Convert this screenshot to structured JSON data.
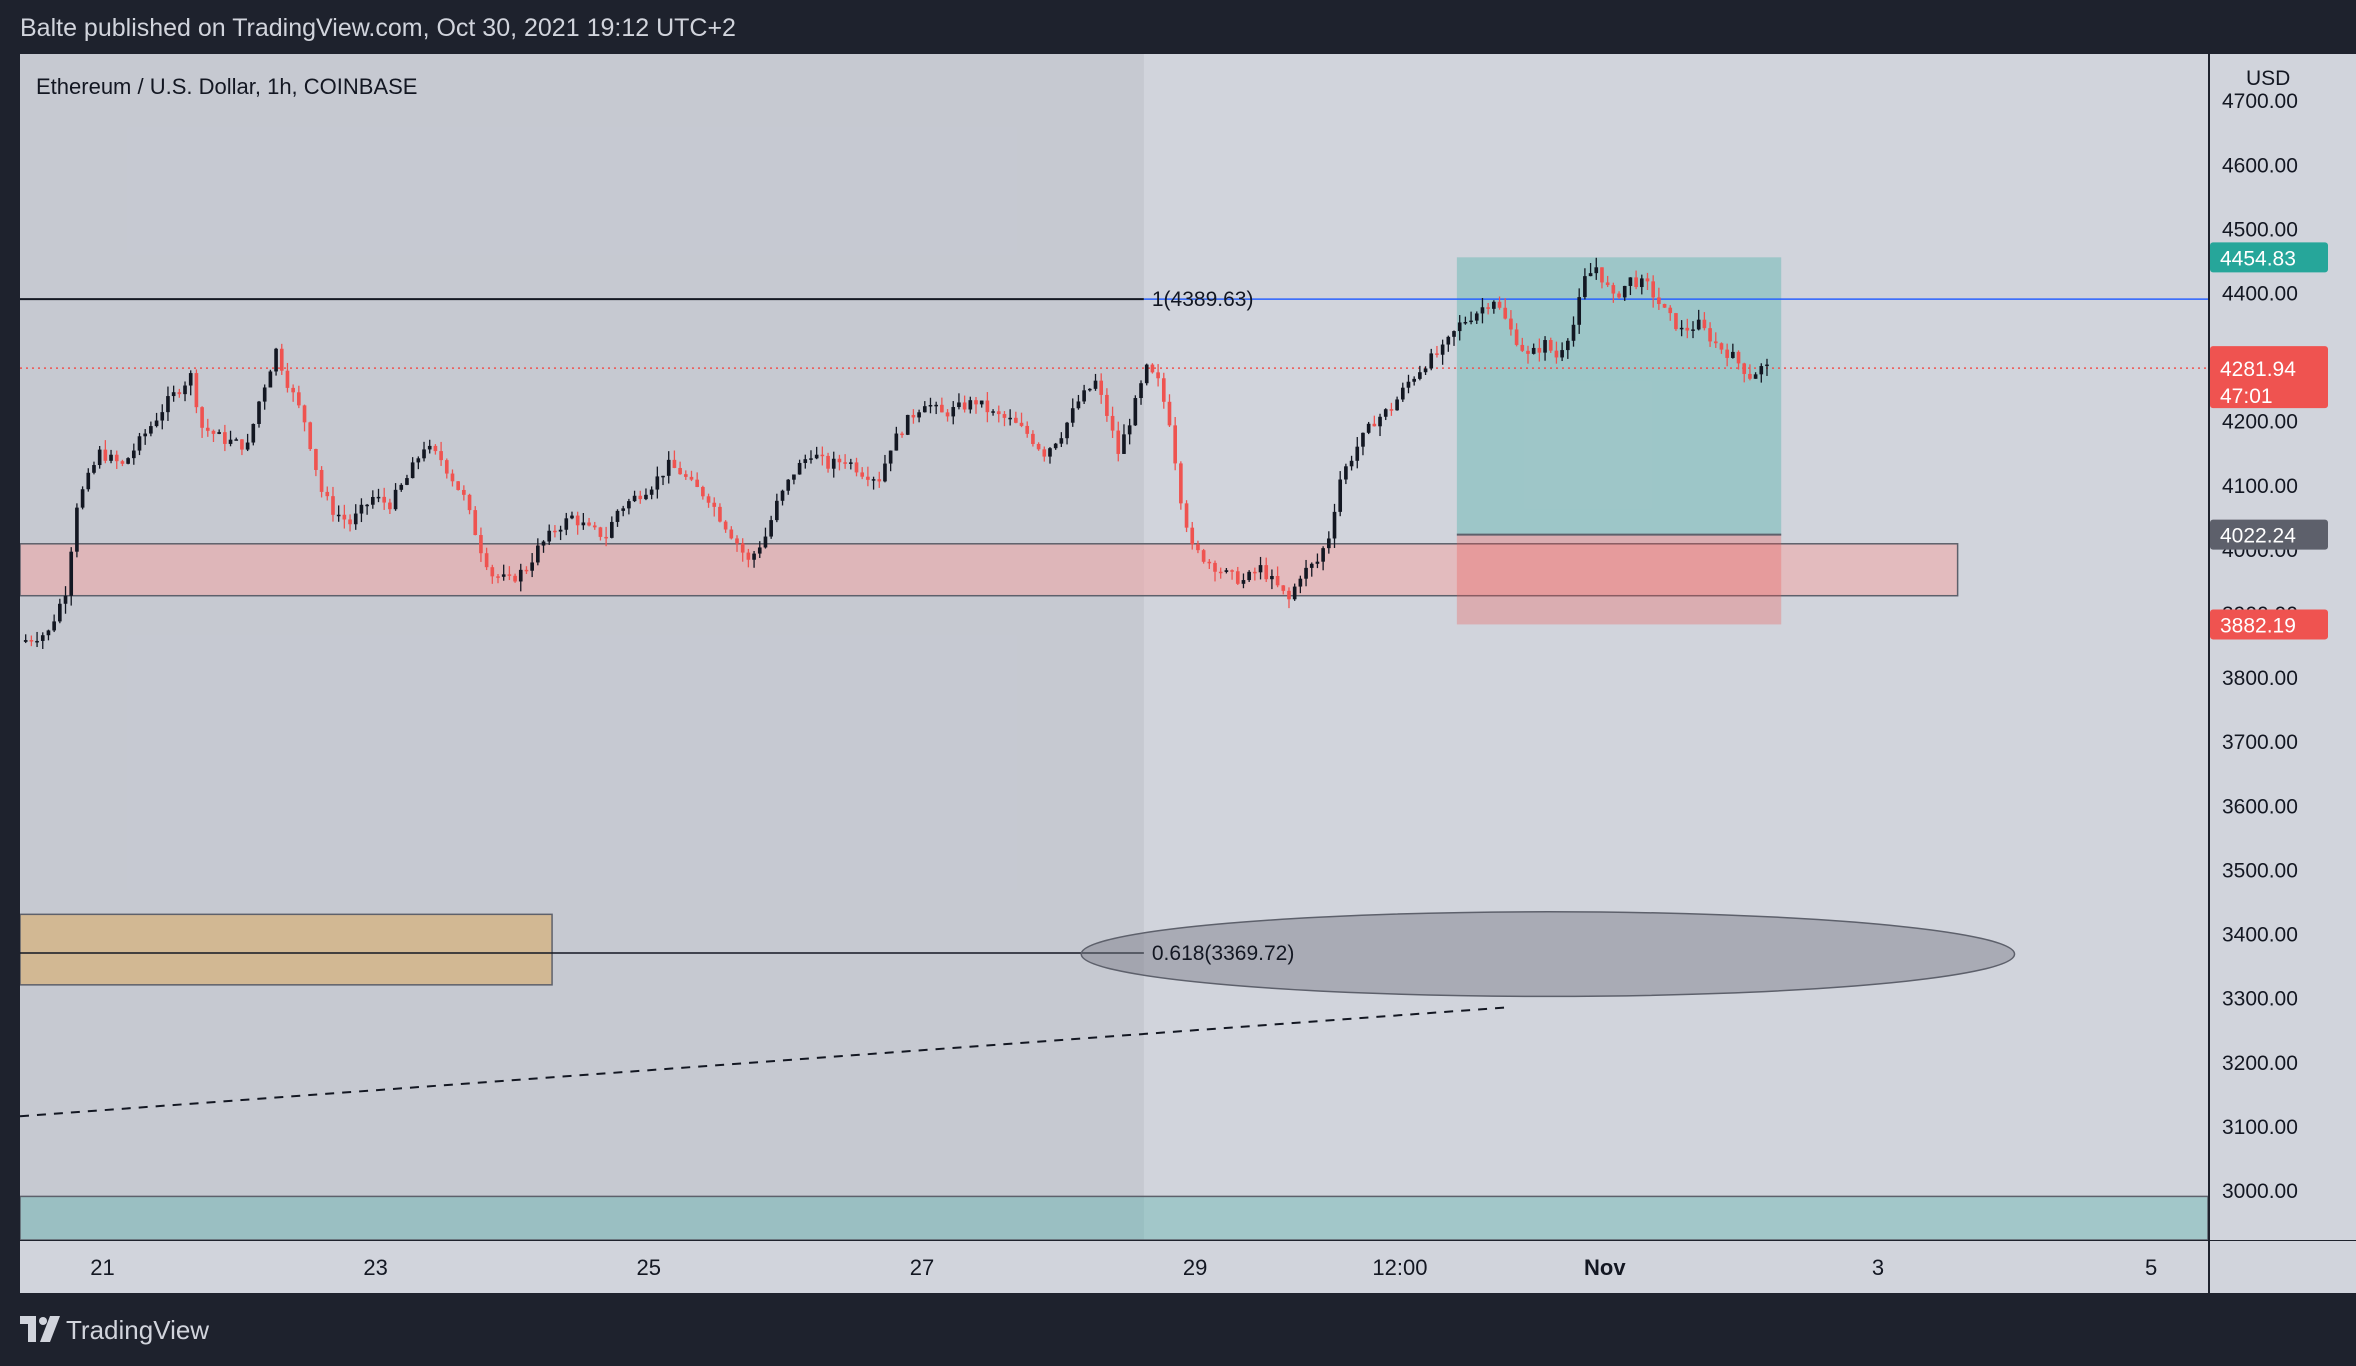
{
  "header": {
    "published_by": "Balte published on TradingView.com, Oct 30, 2021 19:12 UTC+2"
  },
  "footer": {
    "brand": "TradingView"
  },
  "colors": {
    "background": "#d1d4dc",
    "frame": "#1e222d",
    "candle_up": "#131722",
    "candle_down": "#ef5350",
    "take_profit_zone": "#26a69a",
    "stop_zone": "#ef5350",
    "support_zone": "#f2a5a5",
    "demand_zone": "#d4b483",
    "fib_line": "#2962ff"
  },
  "chart_data": {
    "type": "candlestick",
    "title": "Ethereum / U.S. Dollar, 1h, COINBASE",
    "currency": "USD",
    "y_ticks": [
      "3000.00",
      "3100.00",
      "3200.00",
      "3300.00",
      "3400.00",
      "3500.00",
      "3600.00",
      "3700.00",
      "3800.00",
      "3900.00",
      "4000.00",
      "4100.00",
      "4200.00",
      "4300.00",
      "4400.00",
      "4500.00",
      "4600.00",
      "4700.00"
    ],
    "ylim": [
      2922,
      4772
    ],
    "x_ticks": [
      "21",
      "23",
      "25",
      "27",
      "29",
      "12:00",
      "Nov",
      "3",
      "5"
    ],
    "x_tick_hours": [
      24,
      72,
      120,
      168,
      216,
      252,
      288,
      336,
      384
    ],
    "xlim": [
      9.5,
      394
    ],
    "price_labels": {
      "take_profit": "4454.83",
      "last_price": "4281.94",
      "countdown": "47:01",
      "entry": "4022.24",
      "stop_loss": "3882.19"
    },
    "fib_levels": [
      {
        "label": "1(4389.63)",
        "price": 4389.63
      },
      {
        "label": "0.618(3369.72)",
        "price": 3369.72
      }
    ],
    "zones": {
      "support": {
        "from_hour": 9.5,
        "to_hour": 350,
        "low": 3927,
        "high": 4008
      },
      "demand": {
        "from_hour": 9.5,
        "to_hour": 103,
        "low": 3320,
        "high": 3430
      },
      "bottom": {
        "from_hour": 9.5,
        "to_hour": 394,
        "low": 2922,
        "high": 2990
      },
      "highlight": {
        "from_hour": 9.5,
        "to_hour": 207
      }
    },
    "position": {
      "from_hour": 262,
      "to_hour": 319,
      "take_profit": 4454.83,
      "entry": 4022.24,
      "stop_loss": 3882.19
    },
    "ellipse": {
      "center_hour": 278,
      "center_price": 3368,
      "half_width_hours": 82,
      "half_height_price": 66
    },
    "trendline": {
      "from": [
        9.5,
        3115
      ],
      "to": [
        271,
        3285
      ]
    },
    "price_path": [
      [
        10,
        3855
      ],
      [
        15,
        3870
      ],
      [
        18,
        3935
      ],
      [
        20,
        4070
      ],
      [
        24,
        4150
      ],
      [
        28,
        4130
      ],
      [
        32,
        4180
      ],
      [
        36,
        4230
      ],
      [
        40,
        4270
      ],
      [
        42,
        4190
      ],
      [
        46,
        4170
      ],
      [
        50,
        4160
      ],
      [
        52,
        4230
      ],
      [
        55,
        4310
      ],
      [
        57,
        4260
      ],
      [
        60,
        4200
      ],
      [
        63,
        4090
      ],
      [
        65,
        4060
      ],
      [
        68,
        4040
      ],
      [
        70,
        4060
      ],
      [
        72,
        4080
      ],
      [
        75,
        4070
      ],
      [
        78,
        4110
      ],
      [
        81,
        4160
      ],
      [
        84,
        4140
      ],
      [
        86,
        4110
      ],
      [
        88,
        4080
      ],
      [
        91,
        4000
      ],
      [
        93,
        3960
      ],
      [
        96,
        3950
      ],
      [
        99,
        3970
      ],
      [
        101,
        4000
      ],
      [
        104,
        4030
      ],
      [
        107,
        4050
      ],
      [
        110,
        4030
      ],
      [
        113,
        4020
      ],
      [
        115,
        4060
      ],
      [
        118,
        4080
      ],
      [
        121,
        4100
      ],
      [
        124,
        4130
      ],
      [
        126,
        4120
      ],
      [
        128,
        4100
      ],
      [
        131,
        4080
      ],
      [
        133,
        4050
      ],
      [
        136,
        4010
      ],
      [
        138,
        3980
      ],
      [
        141,
        4020
      ],
      [
        143,
        4070
      ],
      [
        146,
        4120
      ],
      [
        149,
        4150
      ],
      [
        152,
        4130
      ],
      [
        155,
        4140
      ],
      [
        158,
        4120
      ],
      [
        161,
        4110
      ],
      [
        163,
        4160
      ],
      [
        166,
        4200
      ],
      [
        169,
        4230
      ],
      [
        172,
        4210
      ],
      [
        175,
        4220
      ],
      [
        178,
        4230
      ],
      [
        181,
        4210
      ],
      [
        184,
        4200
      ],
      [
        187,
        4180
      ],
      [
        190,
        4150
      ],
      [
        193,
        4180
      ],
      [
        196,
        4230
      ],
      [
        199,
        4260
      ],
      [
        201,
        4210
      ],
      [
        203,
        4150
      ],
      [
        205,
        4200
      ],
      [
        208,
        4280
      ],
      [
        210,
        4260
      ],
      [
        212,
        4200
      ],
      [
        214,
        4080
      ],
      [
        216,
        4000
      ],
      [
        219,
        3980
      ],
      [
        222,
        3960
      ],
      [
        225,
        3950
      ],
      [
        228,
        3970
      ],
      [
        231,
        3940
      ],
      [
        233,
        3920
      ],
      [
        235,
        3960
      ],
      [
        238,
        3980
      ],
      [
        240,
        4020
      ],
      [
        242,
        4110
      ],
      [
        245,
        4160
      ],
      [
        248,
        4200
      ],
      [
        251,
        4220
      ],
      [
        254,
        4260
      ],
      [
        257,
        4290
      ],
      [
        260,
        4310
      ],
      [
        263,
        4350
      ],
      [
        266,
        4370
      ],
      [
        269,
        4390
      ],
      [
        272,
        4340
      ],
      [
        275,
        4300
      ],
      [
        278,
        4320
      ],
      [
        280,
        4300
      ],
      [
        283,
        4350
      ],
      [
        285,
        4420
      ],
      [
        287,
        4440
      ],
      [
        290,
        4390
      ],
      [
        293,
        4420
      ],
      [
        296,
        4410
      ],
      [
        299,
        4370
      ],
      [
        302,
        4340
      ],
      [
        305,
        4350
      ],
      [
        308,
        4320
      ],
      [
        311,
        4300
      ],
      [
        314,
        4270
      ],
      [
        316,
        4282
      ]
    ]
  }
}
